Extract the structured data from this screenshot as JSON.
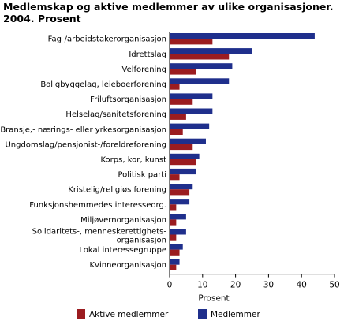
{
  "chart_data": {
    "type": "bar",
    "orientation": "horizontal",
    "title": "Medlemskap og aktive medlemmer av ulike organisasjoner. 2004. Prosent",
    "xlabel": "Prosent",
    "ylabel": "",
    "xlim": [
      0,
      50
    ],
    "xticks": [
      0,
      10,
      20,
      30,
      40,
      50
    ],
    "grid": false,
    "legend_position": "bottom",
    "categories": [
      [
        "Fag-/arbeidstakerorganisasjon"
      ],
      [
        "Idrettslag"
      ],
      [
        "Velforening"
      ],
      [
        "Boligbyggelag, leieboerforening"
      ],
      [
        "Friluftsorganisasjon"
      ],
      [
        "Helselag/sanitetsforening"
      ],
      [
        "Bransje,- nærings- eller yrkesorganisasjon"
      ],
      [
        "Ungdomslag/pensjonist-/foreldreforening"
      ],
      [
        "Korps, kor, kunst"
      ],
      [
        "Politisk parti"
      ],
      [
        "Kristelig/religiøs forening"
      ],
      [
        "Funksjonshemmedes interesseorg."
      ],
      [
        "Miljøvernorganisasjon"
      ],
      [
        "Solidaritets-, menneskerettighets-",
        "organisasjon"
      ],
      [
        "Lokal interessegruppe"
      ],
      [
        "Kvinneorganisasjon"
      ]
    ],
    "series": [
      {
        "name": "Aktive medlemmer",
        "color": "#9b1c20",
        "values": [
          13,
          18,
          8,
          3,
          7,
          5,
          4,
          7,
          8,
          3,
          6,
          2,
          2,
          2,
          3,
          2
        ]
      },
      {
        "name": "Medlemmer",
        "color": "#1f2f8c",
        "values": [
          44,
          25,
          19,
          18,
          13,
          13,
          12,
          11,
          9,
          8,
          7,
          6,
          5,
          5,
          4,
          3
        ]
      }
    ]
  }
}
